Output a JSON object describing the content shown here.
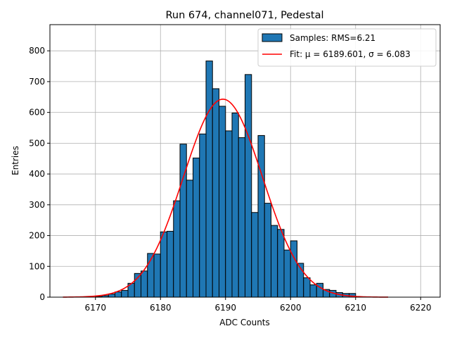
{
  "chart_data": {
    "type": "bar",
    "title": "Run 674, channel071, Pedestal",
    "xlabel": "ADC Counts",
    "ylabel": "Entries",
    "xlim": [
      6163,
      6223
    ],
    "ylim": [
      0,
      885
    ],
    "xticks": [
      6170,
      6180,
      6190,
      6200,
      6210,
      6220
    ],
    "yticks": [
      0,
      100,
      200,
      300,
      400,
      500,
      600,
      700,
      800
    ],
    "grid": true,
    "legend_position": "top-right",
    "bin_width": 1,
    "histogram": {
      "name": "Samples: RMS=6.21",
      "color": "#1f77b4",
      "edge_color": "#000000",
      "bins_start": [
        6170,
        6171,
        6172,
        6173,
        6174,
        6175,
        6176,
        6177,
        6178,
        6179,
        6180,
        6181,
        6182,
        6183,
        6184,
        6185,
        6186,
        6187,
        6188,
        6189,
        6190,
        6191,
        6192,
        6193,
        6194,
        6195,
        6196,
        6197,
        6198,
        6199,
        6200,
        6201,
        6202,
        6203,
        6204,
        6205,
        6206,
        6207,
        6208,
        6209
      ],
      "values": [
        2,
        5,
        10,
        17,
        22,
        45,
        77,
        85,
        142,
        140,
        212,
        214,
        313,
        497,
        380,
        452,
        530,
        767,
        677,
        620,
        540,
        598,
        518,
        723,
        275,
        525,
        305,
        233,
        220,
        153,
        183,
        110,
        63,
        40,
        45,
        25,
        22,
        15,
        12,
        12
      ]
    },
    "fit": {
      "name": "Fit: μ = 6189.601, σ = 6.083",
      "color": "#ff0000",
      "mu": 6189.601,
      "sigma": 6.083,
      "amplitude": 643,
      "x_range": [
        6165,
        6215
      ]
    }
  }
}
